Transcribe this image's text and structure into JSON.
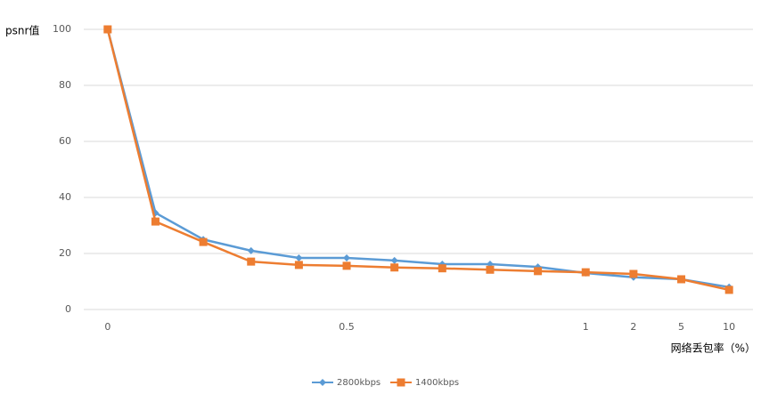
{
  "chart_data": {
    "type": "line",
    "y_label": "psnr值",
    "x_label": "网络丢包率（%）",
    "categories": [
      "0",
      null,
      null,
      null,
      null,
      "0.5",
      null,
      null,
      null,
      null,
      "1",
      "2",
      "5",
      "10"
    ],
    "series": [
      {
        "name": "2800kbps",
        "color": "#5b9bd5",
        "marker": "diamond",
        "values": [
          100,
          34.5,
          25,
          21,
          18.4,
          18.4,
          17.5,
          16.2,
          16.2,
          15.2,
          13,
          11.5,
          10.8,
          8
        ]
      },
      {
        "name": "1400kbps",
        "color": "#ed7d31",
        "marker": "square",
        "values": [
          100,
          31.4,
          24.1,
          17.1,
          15.9,
          15.6,
          15,
          14.7,
          14.2,
          13.7,
          13.3,
          12.7,
          10.8,
          7
        ]
      }
    ],
    "ylim": [
      0,
      100
    ],
    "yticks": [
      0,
      20,
      40,
      60,
      80,
      100
    ],
    "grid": true,
    "legend": "bottom"
  }
}
